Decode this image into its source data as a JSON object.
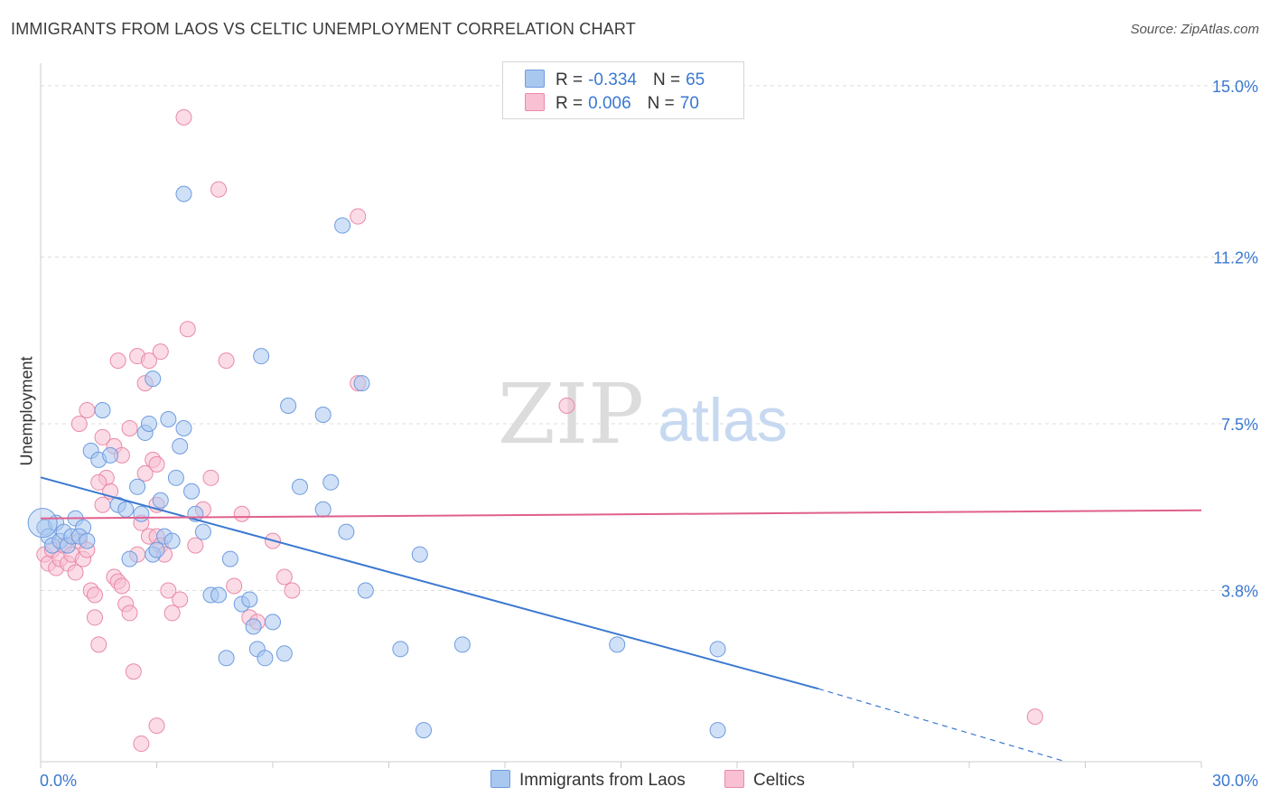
{
  "title": "IMMIGRANTS FROM LAOS VS CELTIC UNEMPLOYMENT CORRELATION CHART",
  "source": "Source: ZipAtlas.com",
  "watermark": {
    "zip": "ZIP",
    "atlas": "atlas"
  },
  "legend": {
    "rows": [
      {
        "r_label": "R =",
        "r_value": "-0.334",
        "n_label": "N =",
        "n_value": "65",
        "color": "#a9c8f0",
        "border": "#6e9be0"
      },
      {
        "r_label": "R =",
        "r_value": "0.006",
        "n_label": "N =",
        "n_value": "70",
        "color": "#f8c0d2",
        "border": "#e98aa8"
      }
    ]
  },
  "bottom_legend": [
    {
      "label": "Immigrants from Laos",
      "color": "#a9c8f0",
      "border": "#6e9be0"
    },
    {
      "label": "Celtics",
      "color": "#f8c0d2",
      "border": "#e98aa8"
    }
  ],
  "colors": {
    "blue": "#3a78d0",
    "pink": "#e0608e",
    "tick_text": "#3a78d0"
  },
  "chart_data": {
    "type": "scatter",
    "title": "IMMIGRANTS FROM LAOS VS CELTIC UNEMPLOYMENT CORRELATION CHART",
    "xlabel": "",
    "ylabel": "Unemployment",
    "xlim": [
      0,
      30
    ],
    "ylim": [
      0,
      15.5
    ],
    "x_tick_labels": [
      {
        "value": 0,
        "label": "0.0%"
      },
      {
        "value": 30,
        "label": "30.0%"
      }
    ],
    "y_tick_labels": [
      {
        "value": 3.8,
        "label": "3.8%"
      },
      {
        "value": 7.5,
        "label": "7.5%"
      },
      {
        "value": 11.2,
        "label": "11.2%"
      },
      {
        "value": 15.0,
        "label": "15.0%"
      }
    ],
    "grid": true,
    "legend_position": "top-center",
    "series": [
      {
        "name": "Immigrants from Laos",
        "color": "#a9c8f0",
        "trend": {
          "x": [
            0,
            20.1
          ],
          "y": [
            6.31,
            1.62
          ],
          "dashed_to": [
            26.5,
            0.0
          ]
        },
        "points": [
          [
            0.1,
            5.2
          ],
          [
            0.2,
            5.0
          ],
          [
            0.3,
            4.8
          ],
          [
            0.4,
            5.3
          ],
          [
            0.5,
            4.9
          ],
          [
            0.6,
            5.1
          ],
          [
            0.7,
            4.8
          ],
          [
            0.8,
            5.0
          ],
          [
            0.9,
            5.4
          ],
          [
            1.1,
            5.2
          ],
          [
            1.0,
            5.0
          ],
          [
            1.2,
            4.9
          ],
          [
            1.3,
            6.9
          ],
          [
            1.5,
            6.7
          ],
          [
            1.6,
            7.8
          ],
          [
            1.8,
            6.8
          ],
          [
            2.0,
            5.7
          ],
          [
            2.2,
            5.6
          ],
          [
            2.3,
            4.5
          ],
          [
            2.5,
            6.1
          ],
          [
            2.7,
            7.3
          ],
          [
            2.8,
            7.5
          ],
          [
            2.9,
            4.6
          ],
          [
            3.0,
            4.7
          ],
          [
            3.1,
            5.8
          ],
          [
            3.2,
            5.0
          ],
          [
            3.4,
            4.9
          ],
          [
            3.5,
            6.3
          ],
          [
            3.6,
            7.0
          ],
          [
            3.7,
            7.4
          ],
          [
            3.9,
            6.0
          ],
          [
            4.0,
            5.5
          ],
          [
            4.2,
            5.1
          ],
          [
            3.3,
            7.6
          ],
          [
            2.6,
            5.5
          ],
          [
            2.9,
            8.5
          ],
          [
            4.8,
            2.3
          ],
          [
            4.4,
            3.7
          ],
          [
            4.6,
            3.7
          ],
          [
            4.9,
            4.5
          ],
          [
            5.2,
            3.5
          ],
          [
            5.4,
            3.6
          ],
          [
            5.5,
            3.0
          ],
          [
            5.7,
            9.0
          ],
          [
            5.6,
            2.5
          ],
          [
            6.0,
            3.1
          ],
          [
            5.8,
            2.3
          ],
          [
            6.3,
            2.4
          ],
          [
            6.4,
            7.9
          ],
          [
            6.7,
            6.1
          ],
          [
            7.3,
            7.7
          ],
          [
            7.3,
            5.6
          ],
          [
            7.8,
            11.9
          ],
          [
            7.9,
            5.1
          ],
          [
            7.5,
            6.2
          ],
          [
            8.3,
            8.4
          ],
          [
            8.4,
            3.8
          ],
          [
            3.7,
            12.6
          ],
          [
            9.3,
            2.5
          ],
          [
            9.8,
            4.6
          ],
          [
            10.9,
            2.6
          ],
          [
            14.9,
            2.6
          ],
          [
            17.5,
            2.5
          ],
          [
            9.9,
            0.7
          ],
          [
            17.5,
            0.7
          ]
        ]
      },
      {
        "name": "Celtics",
        "color": "#f8c0d2",
        "trend": {
          "x": [
            0,
            30
          ],
          "y": [
            5.4,
            5.58
          ]
        },
        "points": [
          [
            0.1,
            4.6
          ],
          [
            0.2,
            4.4
          ],
          [
            0.3,
            4.7
          ],
          [
            0.4,
            4.3
          ],
          [
            0.5,
            4.5
          ],
          [
            0.6,
            4.8
          ],
          [
            0.7,
            4.4
          ],
          [
            0.8,
            4.6
          ],
          [
            0.9,
            4.2
          ],
          [
            1.0,
            4.9
          ],
          [
            1.1,
            4.5
          ],
          [
            1.2,
            4.7
          ],
          [
            1.3,
            3.8
          ],
          [
            1.4,
            3.2
          ],
          [
            1.5,
            2.6
          ],
          [
            1.6,
            7.2
          ],
          [
            1.7,
            6.3
          ],
          [
            1.8,
            6.0
          ],
          [
            1.9,
            4.1
          ],
          [
            2.0,
            4.0
          ],
          [
            2.1,
            3.9
          ],
          [
            2.2,
            3.5
          ],
          [
            2.3,
            3.3
          ],
          [
            2.4,
            2.0
          ],
          [
            2.5,
            4.6
          ],
          [
            2.6,
            5.3
          ],
          [
            2.7,
            6.4
          ],
          [
            2.8,
            5.0
          ],
          [
            2.9,
            6.7
          ],
          [
            3.0,
            5.0
          ],
          [
            3.1,
            4.8
          ],
          [
            3.2,
            4.6
          ],
          [
            3.3,
            3.8
          ],
          [
            3.4,
            3.3
          ],
          [
            3.6,
            3.6
          ],
          [
            3.8,
            9.6
          ],
          [
            4.0,
            4.8
          ],
          [
            4.2,
            5.6
          ],
          [
            4.4,
            6.3
          ],
          [
            4.6,
            12.7
          ],
          [
            4.8,
            8.9
          ],
          [
            5.0,
            3.9
          ],
          [
            5.2,
            5.5
          ],
          [
            5.4,
            3.2
          ],
          [
            5.6,
            3.1
          ],
          [
            6.0,
            4.9
          ],
          [
            6.3,
            4.1
          ],
          [
            6.5,
            3.8
          ],
          [
            1.9,
            7.0
          ],
          [
            2.1,
            6.8
          ],
          [
            2.3,
            7.4
          ],
          [
            2.5,
            9.0
          ],
          [
            2.8,
            8.9
          ],
          [
            3.0,
            6.6
          ],
          [
            1.0,
            7.5
          ],
          [
            1.2,
            7.8
          ],
          [
            1.5,
            6.2
          ],
          [
            1.6,
            5.7
          ],
          [
            2.0,
            8.9
          ],
          [
            2.7,
            8.4
          ],
          [
            3.1,
            9.1
          ],
          [
            8.2,
            8.4
          ],
          [
            8.2,
            12.1
          ],
          [
            13.6,
            7.9
          ],
          [
            3.7,
            14.3
          ],
          [
            3.0,
            5.7
          ],
          [
            3.0,
            0.8
          ],
          [
            2.6,
            0.4
          ],
          [
            25.7,
            1.0
          ],
          [
            1.4,
            3.7
          ]
        ]
      }
    ]
  }
}
